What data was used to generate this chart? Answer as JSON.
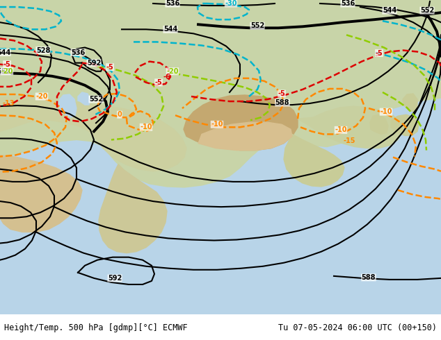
{
  "title_left": "Height/Temp. 500 hPa [gdmp][°C] ECMWF",
  "title_right": "Tu 07-05-2024 06:00 UTC (00+150)",
  "title_fontsize": 8.5,
  "figsize": [
    6.34,
    4.9
  ],
  "dpi": 100,
  "ocean_color": "#b8d4e8",
  "land_color_north": "#c8d8b0",
  "land_color_mid": "#d4c8a0",
  "land_color_tibet": "#c8a870",
  "land_color_desert": "#d8c898",
  "contour_black": "#000000",
  "contour_thick": "#000000",
  "contour_cyan": "#00b4cc",
  "contour_green": "#90cc00",
  "contour_orange": "#ff8800",
  "contour_red": "#dd0000"
}
